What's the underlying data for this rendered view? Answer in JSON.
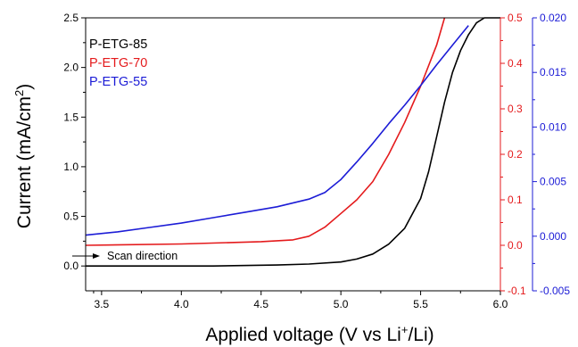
{
  "chart_data": {
    "type": "line",
    "xlabel": "Applied voltage (V vs Li",
    "xlabel_sup": "+",
    "xlabel_tail": "/Li)",
    "ylabel": "Current (mA/cm",
    "ylabel_sup": "2",
    "ylabel_tail": ")",
    "xlim": [
      3.4,
      6.0
    ],
    "x_ticks": [
      "3.5",
      "4.0",
      "4.5",
      "5.0",
      "5.5",
      "6.0"
    ],
    "x_tick_values": [
      3.5,
      4.0,
      4.5,
      5.0,
      5.5,
      6.0
    ],
    "axes": {
      "left": {
        "ylim": [
          -0.25,
          2.5
        ],
        "color": "#000000",
        "ticks": [
          "0.0",
          "0.5",
          "1.0",
          "1.5",
          "2.0",
          "2.5"
        ],
        "tick_values": [
          0,
          0.5,
          1.0,
          1.5,
          2.0,
          2.5
        ]
      },
      "right1": {
        "ylim": [
          -0.1,
          0.5
        ],
        "color": "#e41a1c",
        "ticks": [
          "-0.1",
          "0.0",
          "0.1",
          "0.2",
          "0.3",
          "0.4",
          "0.5"
        ],
        "tick_values": [
          -0.1,
          0,
          0.1,
          0.2,
          0.3,
          0.4,
          0.5
        ]
      },
      "right2": {
        "ylim": [
          -0.005,
          0.02
        ],
        "color": "#1c1cd6",
        "ticks": [
          "-0.005",
          "0.000",
          "0.005",
          "0.010",
          "0.015",
          "0.020"
        ],
        "tick_values": [
          -0.005,
          0,
          0.005,
          0.01,
          0.015,
          0.02
        ]
      }
    },
    "series": [
      {
        "name": "P-ETG-85",
        "color": "#000000",
        "axis": "left",
        "x": [
          3.4,
          3.8,
          4.2,
          4.6,
          4.8,
          5.0,
          5.1,
          5.2,
          5.3,
          5.4,
          5.5,
          5.55,
          5.6,
          5.65,
          5.7,
          5.75,
          5.8,
          5.85,
          5.9,
          6.0
        ],
        "y": [
          0.0,
          0.0,
          0.0,
          0.01,
          0.02,
          0.04,
          0.07,
          0.12,
          0.22,
          0.38,
          0.68,
          0.95,
          1.3,
          1.65,
          1.95,
          2.17,
          2.33,
          2.45,
          2.5,
          2.5
        ]
      },
      {
        "name": "P-ETG-70",
        "color": "#e41a1c",
        "axis": "right1",
        "x": [
          3.4,
          4.0,
          4.5,
          4.7,
          4.8,
          4.9,
          5.0,
          5.1,
          5.2,
          5.3,
          5.4,
          5.5,
          5.6,
          5.65
        ],
        "y": [
          0.0,
          0.003,
          0.008,
          0.012,
          0.02,
          0.04,
          0.07,
          0.1,
          0.14,
          0.2,
          0.27,
          0.35,
          0.44,
          0.5
        ]
      },
      {
        "name": "P-ETG-55",
        "color": "#1c1cd6",
        "axis": "right2",
        "x": [
          3.4,
          3.6,
          3.8,
          4.0,
          4.2,
          4.4,
          4.6,
          4.8,
          4.9,
          5.0,
          5.1,
          5.2,
          5.3,
          5.4,
          5.5,
          5.6,
          5.7,
          5.8
        ],
        "y": [
          0.0001,
          0.0004,
          0.0008,
          0.0012,
          0.0017,
          0.0022,
          0.0027,
          0.0034,
          0.004,
          0.0052,
          0.0068,
          0.0085,
          0.0103,
          0.012,
          0.0138,
          0.0157,
          0.0175,
          0.0193
        ]
      }
    ],
    "legend": {
      "position": "top-left",
      "items": [
        {
          "label": "P-ETG-85",
          "color": "#000000"
        },
        {
          "label": "P-ETG-70",
          "color": "#e41a1c"
        },
        {
          "label": "P-ETG-55",
          "color": "#1c1cd6"
        }
      ]
    },
    "annotation": {
      "text": "Scan direction",
      "arrow": "right"
    }
  }
}
